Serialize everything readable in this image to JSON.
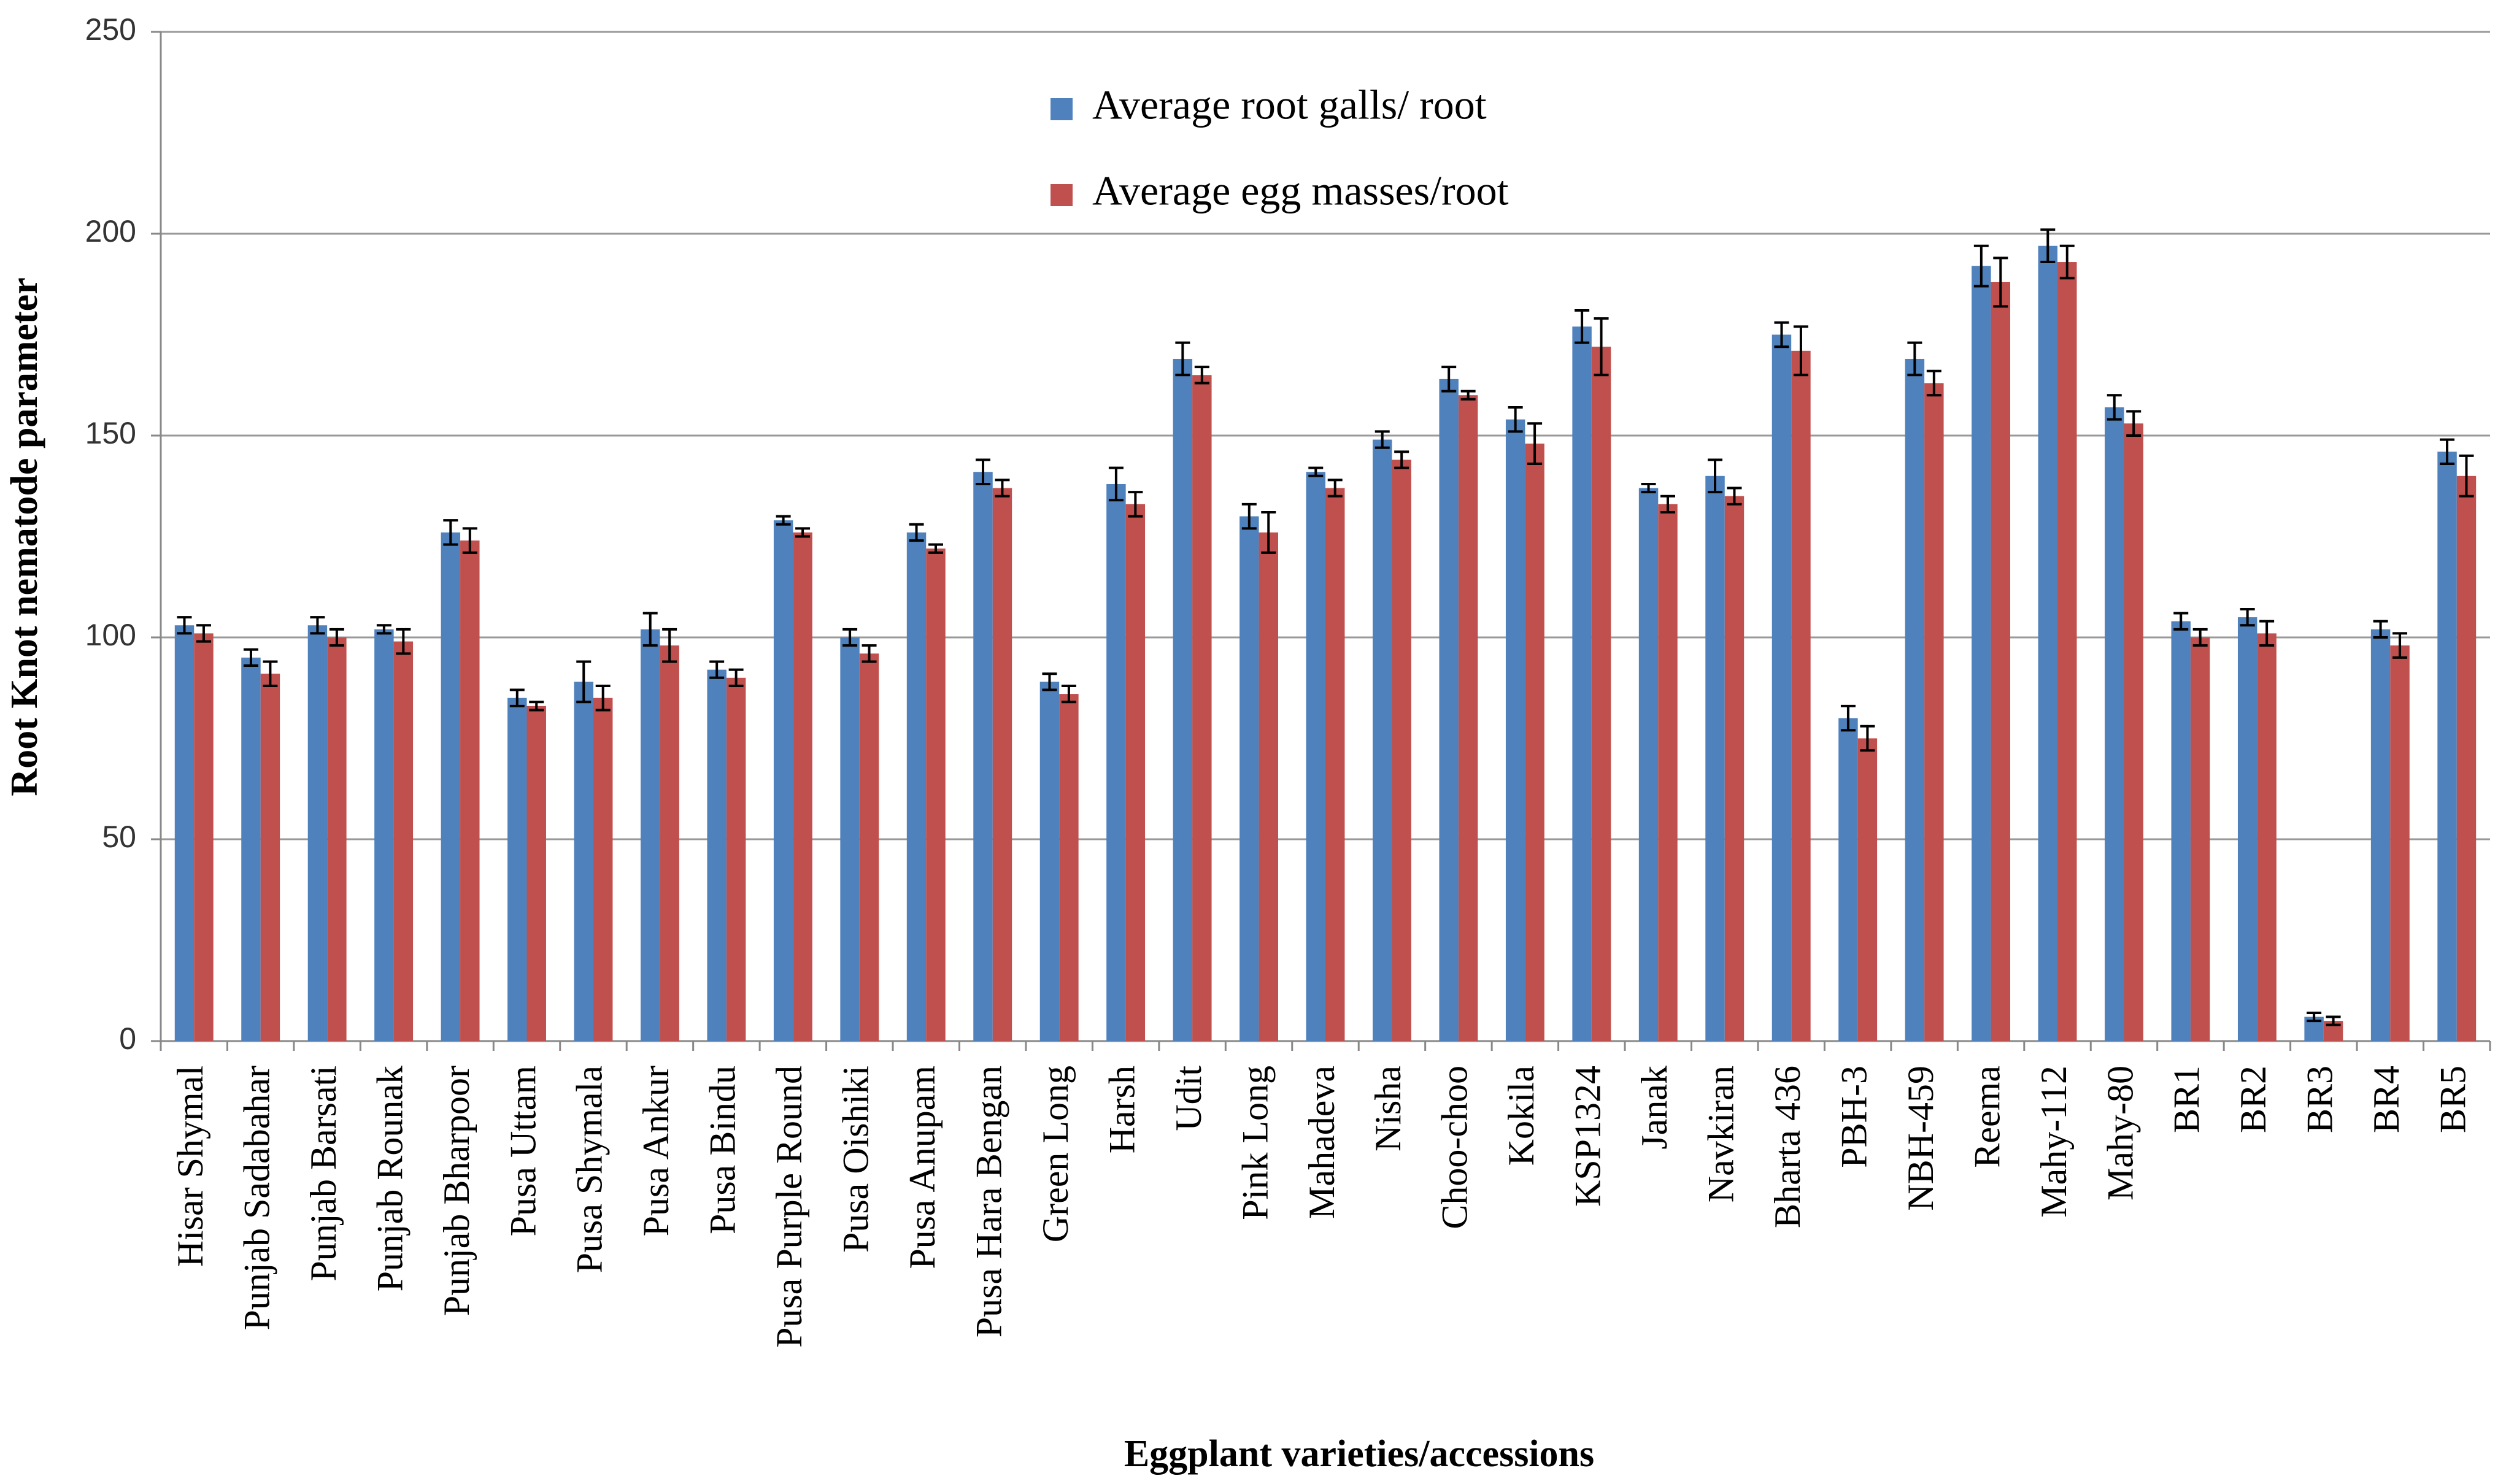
{
  "chart_data": {
    "type": "bar",
    "x_label": "Eggplant varieties/accessions",
    "y_label": "Root  Knot nematode parameter",
    "categories": [
      "Hisar Shymal",
      "Punjab Sadabahar",
      "Punjab Barsati",
      "Punjab Rounak",
      "Punjab Bharpoor",
      "Pusa Uttam",
      "Pusa Shymala",
      "Pusa Ankur",
      "Pusa Bindu",
      "Pusa Purple Round",
      "Pusa Oishiki",
      "Pusa Anupam",
      "Pusa Hara Bengan",
      "Green Long",
      "Harsh",
      "Udit",
      "Pink Long",
      "Mahadeva",
      "Nisha",
      "Choo-choo",
      "Kokila",
      "KSP1324",
      "Janak",
      "Navkiran",
      "Bharta 436",
      "PBH-3",
      "NBH-459",
      "Reema",
      "Mahy-112",
      "Mahy-80",
      "BR1",
      "BR2",
      "BR3",
      "BR4",
      "BR5"
    ],
    "series": [
      {
        "name": "Average root galls/ root",
        "color": "#4f81bd",
        "values": [
          103,
          95,
          103,
          102,
          126,
          85,
          89,
          102,
          92,
          129,
          100,
          126,
          141,
          89,
          138,
          169,
          130,
          141,
          149,
          164,
          154,
          177,
          137,
          140,
          175,
          80,
          169,
          192,
          197,
          157,
          104,
          105,
          6,
          102,
          146
        ],
        "errors": [
          2,
          2,
          2,
          1,
          3,
          2,
          5,
          4,
          2,
          1,
          2,
          2,
          3,
          2,
          4,
          4,
          3,
          1,
          2,
          3,
          3,
          4,
          1,
          4,
          3,
          3,
          4,
          5,
          4,
          3,
          2,
          2,
          1,
          2,
          3
        ]
      },
      {
        "name": "Average egg masses/root",
        "color": "#c0504d",
        "values": [
          101,
          91,
          100,
          99,
          124,
          83,
          85,
          98,
          90,
          126,
          96,
          122,
          137,
          86,
          133,
          165,
          126,
          137,
          144,
          160,
          148,
          172,
          133,
          135,
          171,
          75,
          163,
          188,
          193,
          153,
          100,
          101,
          5,
          98,
          140
        ],
        "errors": [
          2,
          3,
          2,
          3,
          3,
          1,
          3,
          4,
          2,
          1,
          2,
          1,
          2,
          2,
          3,
          2,
          5,
          2,
          2,
          1,
          5,
          7,
          2,
          2,
          6,
          3,
          3,
          6,
          4,
          3,
          2,
          3,
          1,
          3,
          5
        ]
      }
    ],
    "ylim": [
      0,
      250
    ],
    "yticks": [
      0,
      50,
      100,
      150,
      200,
      250
    ],
    "grid": true
  }
}
